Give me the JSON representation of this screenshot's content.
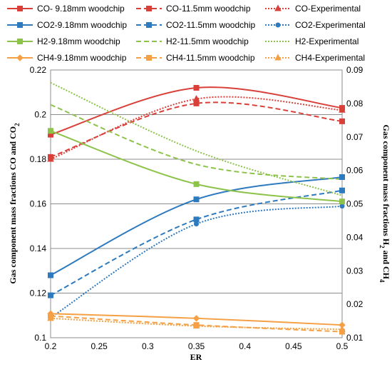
{
  "chart_data": {
    "type": "line",
    "xlabel": "ER",
    "ylabel_left": "Gas component mass fractions CO and CO",
    "ylabel_left_sub": "2",
    "ylabel_right": "Gas component mass fractions H",
    "ylabel_right_sub1": "2",
    "ylabel_right_mid": " and CH",
    "ylabel_right_sub2": "4",
    "x_ticks": [
      "0.2",
      "0.25",
      "0.3",
      "0.35",
      "0.4",
      "0.45",
      "0.5"
    ],
    "y_left_ticks": [
      "0.1",
      "0.12",
      "0.14",
      "0.16",
      "0.18",
      "0.2",
      "0.22"
    ],
    "y_right_ticks": [
      "0.01",
      "0.02",
      "0.03",
      "0.04",
      "0.05",
      "0.06",
      "0.07",
      "0.08",
      "0.09"
    ],
    "xlim": [
      0.2,
      0.5
    ],
    "ylim_left": [
      0.1,
      0.22
    ],
    "ylim_right": [
      0.01,
      0.09
    ],
    "grid": "horizontal",
    "legend_position": "top",
    "series": [
      {
        "name": "CO- 9.18mm woodchip",
        "axis": "left",
        "color": "#D9403A",
        "dash": "solid",
        "marker": "square",
        "x": [
          0.2,
          0.35,
          0.5
        ],
        "values": [
          0.191,
          0.212,
          0.203
        ]
      },
      {
        "name": "CO-11.5mm woodchip",
        "axis": "left",
        "color": "#D9403A",
        "dash": "dash",
        "marker": "square",
        "x": [
          0.2,
          0.35,
          0.5
        ],
        "values": [
          0.181,
          0.205,
          0.197
        ]
      },
      {
        "name": "CO-Experimental",
        "axis": "left",
        "color": "#D9403A",
        "dash": "dot",
        "marker": "triangle",
        "x": [
          0.2,
          0.35,
          0.5
        ],
        "values": [
          0.18,
          0.207,
          0.202
        ]
      },
      {
        "name": "CO2-9.18mm woodchip",
        "axis": "left",
        "color": "#2E7ABF",
        "dash": "solid",
        "marker": "square",
        "x": [
          0.2,
          0.35,
          0.5
        ],
        "values": [
          0.128,
          0.162,
          0.172
        ]
      },
      {
        "name": "CO2-11.5mm woodchip",
        "axis": "left",
        "color": "#2E7ABF",
        "dash": "dash",
        "marker": "square",
        "x": [
          0.2,
          0.35,
          0.5
        ],
        "values": [
          0.119,
          0.153,
          0.166
        ]
      },
      {
        "name": "CO2-Experimental",
        "axis": "left",
        "color": "#2E7ABF",
        "dash": "dot",
        "marker": "circle",
        "x": [
          0.2,
          0.35,
          0.5
        ],
        "values": [
          0.109,
          0.151,
          0.159
        ]
      },
      {
        "name": "H2-9.18mm woodchip",
        "axis": "right",
        "color": "#8DC34A",
        "dash": "solid",
        "marker": "square",
        "x": [
          0.2,
          0.35,
          0.5
        ],
        "values": [
          0.0718,
          0.0559,
          0.0507
        ]
      },
      {
        "name": "H2-11.5mm woodchip",
        "axis": "right",
        "color": "#8DC34A",
        "dash": "dash",
        "marker": "none",
        "x": [
          0.2,
          0.35,
          0.5
        ],
        "values": [
          0.0796,
          0.0618,
          0.0573
        ]
      },
      {
        "name": "H2-Experimental",
        "axis": "right",
        "color": "#8DC34A",
        "dash": "dot",
        "marker": "none",
        "x": [
          0.2,
          0.35,
          0.5
        ],
        "values": [
          0.0862,
          0.0658,
          0.0525
        ]
      },
      {
        "name": "CH4-9.18mm woodchip",
        "axis": "right",
        "color": "#F5A044",
        "dash": "solid",
        "marker": "diamond",
        "x": [
          0.2,
          0.35,
          0.5
        ],
        "values": [
          0.0172,
          0.0158,
          0.0138
        ]
      },
      {
        "name": "CH4-11.5mm woodchip",
        "axis": "right",
        "color": "#F5A044",
        "dash": "dash",
        "marker": "square",
        "x": [
          0.2,
          0.35,
          0.5
        ],
        "values": [
          0.0165,
          0.0138,
          0.0118
        ]
      },
      {
        "name": "CH4-Experimental",
        "axis": "right",
        "color": "#F5A044",
        "dash": "dot",
        "marker": "triangle",
        "x": [
          0.2,
          0.35,
          0.5
        ],
        "values": [
          0.0158,
          0.0135,
          0.0125
        ]
      }
    ]
  }
}
